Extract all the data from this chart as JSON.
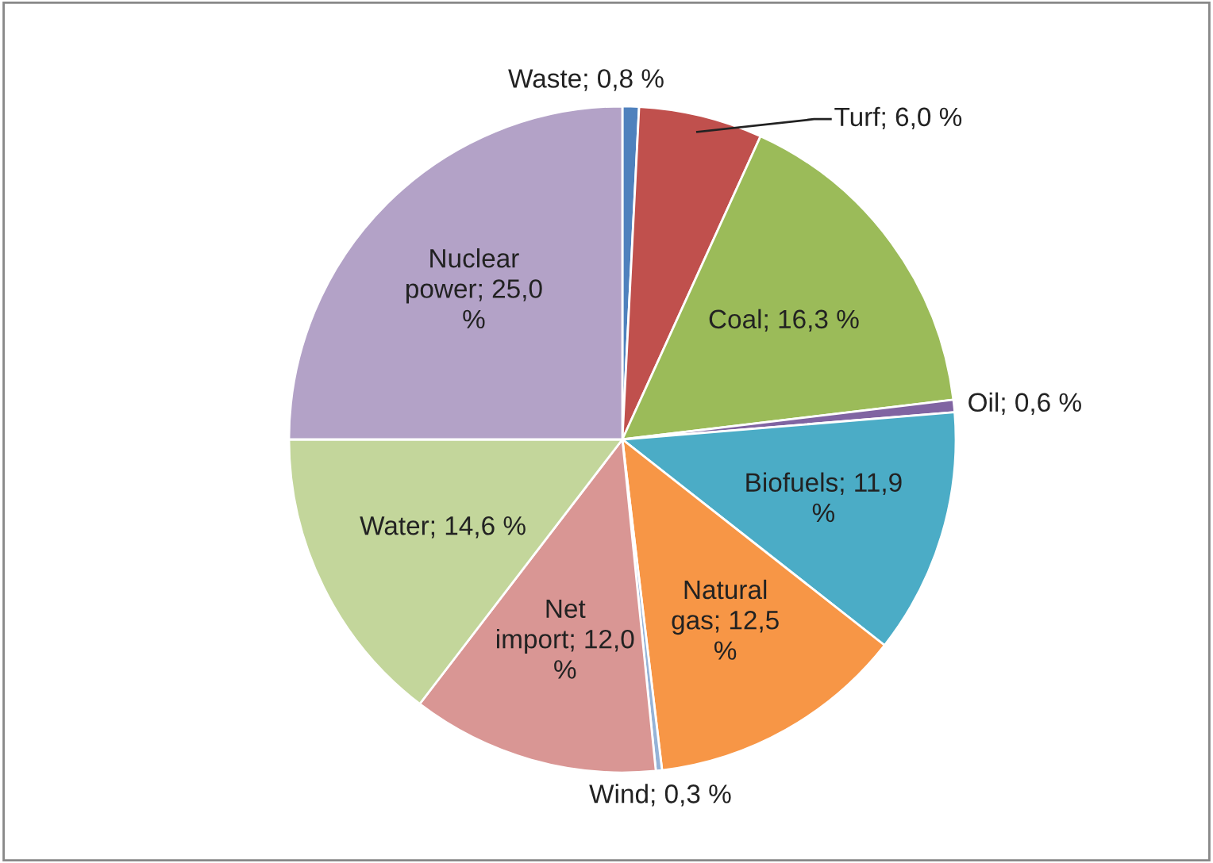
{
  "chart_data": {
    "type": "pie",
    "categories": [
      "Waste",
      "Turf",
      "Coal",
      "Oil",
      "Biofuels",
      "Natural gas",
      "Wind",
      "Net import",
      "Water",
      "Nuclear power"
    ],
    "values": [
      0.8,
      6.0,
      16.3,
      0.6,
      11.9,
      12.5,
      0.3,
      12.0,
      14.6,
      25.0
    ],
    "value_labels": [
      "0,8 %",
      "6,0 %",
      "16,3 %",
      "0,6 %",
      "11,9 %",
      "12,5 %",
      "0,3 %",
      "12,0 %",
      "14,6 %",
      "25,0 %"
    ],
    "colors": [
      "#4f81bd",
      "#c0504d",
      "#9bbb59",
      "#8064a2",
      "#4bacc6",
      "#f79646",
      "#95b3d7",
      "#d99694",
      "#c3d69b",
      "#b3a2c7"
    ],
    "legend": false
  }
}
